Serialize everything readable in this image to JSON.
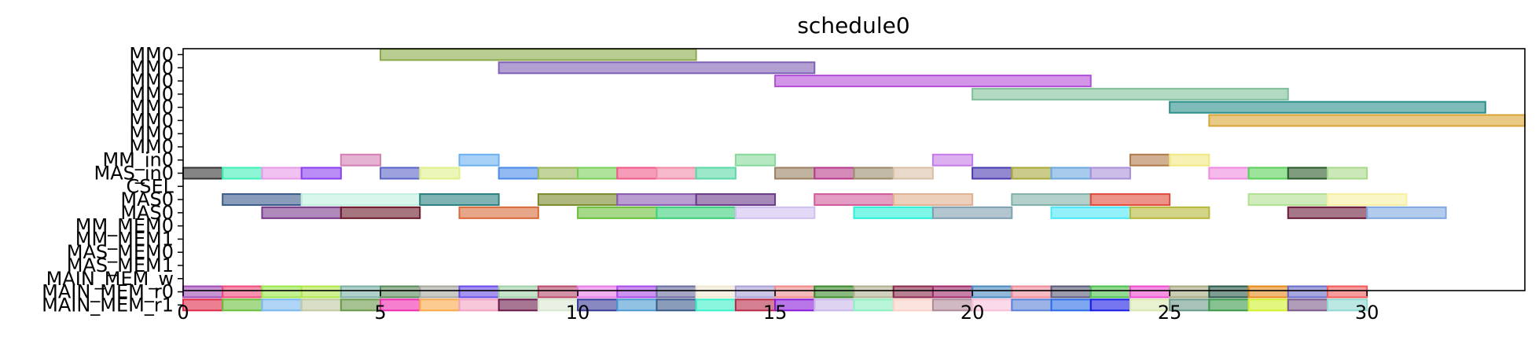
{
  "chart_data": {
    "type": "gantt",
    "title": "schedule0",
    "xlim": [
      0,
      34
    ],
    "x_ticks": [
      0,
      5,
      10,
      15,
      20,
      25,
      30
    ],
    "x_tick_labels": [
      "0",
      "5",
      "10",
      "15",
      "20",
      "25",
      "30"
    ],
    "rows": [
      "MM0",
      "MM0",
      "MM0",
      "MM0",
      "MM0",
      "MM0",
      "MM0",
      "MM0",
      "MM_in0",
      "MAS_in0",
      "CSEL",
      "MAS0",
      "MAS0",
      "MM_MEM0",
      "MM_MEM1",
      "MAS_MEM0",
      "MAS_MEM1",
      "MAIN_MEM_w",
      "MAIN_MEM_r0",
      "MAIN_MEM_r1"
    ],
    "bars": [
      {
        "row": 0,
        "start": 5,
        "end": 13,
        "color": "#8aaa4a"
      },
      {
        "row": 1,
        "start": 8,
        "end": 16,
        "color": "#7e61b5"
      },
      {
        "row": 2,
        "start": 15,
        "end": 23,
        "color": "#b44fd8"
      },
      {
        "row": 3,
        "start": 20,
        "end": 28,
        "color": "#7fbf9a"
      },
      {
        "row": 4,
        "start": 25,
        "end": 33,
        "color": "#2a8f8a"
      },
      {
        "row": 5,
        "start": 26,
        "end": 34,
        "color": "#d8a534"
      },
      {
        "row": 8,
        "start": 4,
        "end": 5,
        "color": "#d47fb3"
      },
      {
        "row": 8,
        "start": 7,
        "end": 8,
        "color": "#6cb0f0"
      },
      {
        "row": 8,
        "start": 14,
        "end": 15,
        "color": "#86d89a"
      },
      {
        "row": 8,
        "start": 19,
        "end": 20,
        "color": "#c47ae8"
      },
      {
        "row": 8,
        "start": 24,
        "end": 25,
        "color": "#b0794a"
      },
      {
        "row": 8,
        "start": 25,
        "end": 26,
        "color": "#f0e880"
      },
      {
        "row": 9,
        "start": 0,
        "end": 1,
        "color": "#333333"
      },
      {
        "row": 9,
        "start": 1,
        "end": 2,
        "color": "#3ff0b8"
      },
      {
        "row": 9,
        "start": 2,
        "end": 3,
        "color": "#e89ae8"
      },
      {
        "row": 9,
        "start": 3,
        "end": 4,
        "color": "#8a3ff0"
      },
      {
        "row": 9,
        "start": 5,
        "end": 6,
        "color": "#5a64c8"
      },
      {
        "row": 9,
        "start": 6,
        "end": 7,
        "color": "#dff08a"
      },
      {
        "row": 9,
        "start": 8,
        "end": 9,
        "color": "#4a8ae8"
      },
      {
        "row": 9,
        "start": 9,
        "end": 10,
        "color": "#9ab85a"
      },
      {
        "row": 9,
        "start": 10,
        "end": 11,
        "color": "#7ad05a"
      },
      {
        "row": 9,
        "start": 11,
        "end": 12,
        "color": "#f05a8a"
      },
      {
        "row": 9,
        "start": 12,
        "end": 13,
        "color": "#f08aa8"
      },
      {
        "row": 9,
        "start": 13,
        "end": 14,
        "color": "#5ad8a8"
      },
      {
        "row": 9,
        "start": 15,
        "end": 16,
        "color": "#9a8060"
      },
      {
        "row": 9,
        "start": 16,
        "end": 17,
        "color": "#b83a8a"
      },
      {
        "row": 9,
        "start": 17,
        "end": 18,
        "color": "#9a8a6a"
      },
      {
        "row": 9,
        "start": 18,
        "end": 19,
        "color": "#d8c0a8"
      },
      {
        "row": 9,
        "start": 20,
        "end": 21,
        "color": "#4a3ab0"
      },
      {
        "row": 9,
        "start": 21,
        "end": 22,
        "color": "#a8a83a"
      },
      {
        "row": 9,
        "start": 22,
        "end": 23,
        "color": "#6aa8e0"
      },
      {
        "row": 9,
        "start": 23,
        "end": 24,
        "color": "#a890d8"
      },
      {
        "row": 9,
        "start": 26,
        "end": 27,
        "color": "#f08ae0"
      },
      {
        "row": 9,
        "start": 27,
        "end": 28,
        "color": "#5ad05a"
      },
      {
        "row": 9,
        "start": 28,
        "end": 29,
        "color": "#2a5a2a"
      },
      {
        "row": 9,
        "start": 29,
        "end": 30,
        "color": "#a8d88a"
      },
      {
        "row": 11,
        "start": 1,
        "end": 3,
        "color": "#3a5a8a"
      },
      {
        "row": 11,
        "start": 3,
        "end": 6,
        "color": "#c0f0e0"
      },
      {
        "row": 11,
        "start": 6,
        "end": 8,
        "color": "#2a8080"
      },
      {
        "row": 11,
        "start": 9,
        "end": 11,
        "color": "#7a8a2a"
      },
      {
        "row": 11,
        "start": 11,
        "end": 13,
        "color": "#8a5ab0"
      },
      {
        "row": 11,
        "start": 13,
        "end": 15,
        "color": "#6a3a8a"
      },
      {
        "row": 11,
        "start": 16,
        "end": 18,
        "color": "#d05a9a"
      },
      {
        "row": 11,
        "start": 18,
        "end": 20,
        "color": "#e0b090"
      },
      {
        "row": 11,
        "start": 21,
        "end": 23,
        "color": "#80b0a8"
      },
      {
        "row": 11,
        "start": 23,
        "end": 25,
        "color": "#e04a3a"
      },
      {
        "row": 11,
        "start": 27,
        "end": 29,
        "color": "#b0e090"
      },
      {
        "row": 11,
        "start": 29,
        "end": 31,
        "color": "#f8f0a0"
      },
      {
        "row": 12,
        "start": 2,
        "end": 4,
        "color": "#7a3a8a"
      },
      {
        "row": 12,
        "start": 4,
        "end": 6,
        "color": "#6a1a2a"
      },
      {
        "row": 12,
        "start": 7,
        "end": 9,
        "color": "#d86a3a"
      },
      {
        "row": 12,
        "start": 10,
        "end": 12,
        "color": "#6ac03a"
      },
      {
        "row": 12,
        "start": 12,
        "end": 14,
        "color": "#3ad07a"
      },
      {
        "row": 12,
        "start": 14,
        "end": 16,
        "color": "#d0c0f0"
      },
      {
        "row": 12,
        "start": 17,
        "end": 19,
        "color": "#2af0d8"
      },
      {
        "row": 12,
        "start": 19,
        "end": 21,
        "color": "#80a0b0"
      },
      {
        "row": 12,
        "start": 22,
        "end": 24,
        "color": "#4ae8f8"
      },
      {
        "row": 12,
        "start": 24,
        "end": 26,
        "color": "#b8b83a"
      },
      {
        "row": 12,
        "start": 28,
        "end": 30,
        "color": "#6a1a3a"
      },
      {
        "row": 12,
        "start": 30,
        "end": 32,
        "color": "#80a8e0"
      },
      {
        "row": 18,
        "start": 0,
        "end": 1,
        "color": "#a04ab8"
      },
      {
        "row": 18,
        "start": 1,
        "end": 2,
        "color": "#f04a7a"
      },
      {
        "row": 18,
        "start": 2,
        "end": 3,
        "color": "#9ae84a"
      },
      {
        "row": 18,
        "start": 3,
        "end": 4,
        "color": "#b0e84a"
      },
      {
        "row": 18,
        "start": 4,
        "end": 5,
        "color": "#7ab0a8"
      },
      {
        "row": 18,
        "start": 5,
        "end": 6,
        "color": "#5a8a5a"
      },
      {
        "row": 18,
        "start": 6,
        "end": 7,
        "color": "#a8a8a0"
      },
      {
        "row": 18,
        "start": 7,
        "end": 8,
        "color": "#6a4ae8"
      },
      {
        "row": 18,
        "start": 8,
        "end": 9,
        "color": "#a0d0a8"
      },
      {
        "row": 18,
        "start": 9,
        "end": 10,
        "color": "#b84a6a"
      },
      {
        "row": 18,
        "start": 10,
        "end": 11,
        "color": "#e87ae8"
      },
      {
        "row": 18,
        "start": 11,
        "end": 12,
        "color": "#a84ae8"
      },
      {
        "row": 18,
        "start": 12,
        "end": 13,
        "color": "#6a6aa0"
      },
      {
        "row": 18,
        "start": 13,
        "end": 14,
        "color": "#f0e8d0"
      },
      {
        "row": 18,
        "start": 14,
        "end": 15,
        "color": "#a8a0d8"
      },
      {
        "row": 18,
        "start": 15,
        "end": 16,
        "color": "#f08a8a"
      },
      {
        "row": 18,
        "start": 16,
        "end": 17,
        "color": "#3a8a2a"
      },
      {
        "row": 18,
        "start": 17,
        "end": 18,
        "color": "#b0b090"
      },
      {
        "row": 18,
        "start": 18,
        "end": 19,
        "color": "#8a2a4a"
      },
      {
        "row": 18,
        "start": 19,
        "end": 20,
        "color": "#a02a6a"
      },
      {
        "row": 18,
        "start": 20,
        "end": 21,
        "color": "#4a8ac0"
      },
      {
        "row": 18,
        "start": 21,
        "end": 22,
        "color": "#f08a9a"
      },
      {
        "row": 18,
        "start": 22,
        "end": 23,
        "color": "#5a5a7a"
      },
      {
        "row": 18,
        "start": 23,
        "end": 24,
        "color": "#4ac04a"
      },
      {
        "row": 18,
        "start": 24,
        "end": 25,
        "color": "#f04ad0"
      },
      {
        "row": 18,
        "start": 25,
        "end": 26,
        "color": "#a8a880"
      },
      {
        "row": 18,
        "start": 26,
        "end": 27,
        "color": "#2a5a4a"
      },
      {
        "row": 18,
        "start": 27,
        "end": 28,
        "color": "#e88a1a"
      },
      {
        "row": 18,
        "start": 28,
        "end": 29,
        "color": "#6a6ac8"
      },
      {
        "row": 18,
        "start": 29,
        "end": 30,
        "color": "#f05a5a"
      },
      {
        "row": 19,
        "start": 0,
        "end": 1,
        "color": "#e02a4a"
      },
      {
        "row": 19,
        "start": 1,
        "end": 2,
        "color": "#6ac03a"
      },
      {
        "row": 19,
        "start": 2,
        "end": 3,
        "color": "#7ab8f0"
      },
      {
        "row": 19,
        "start": 3,
        "end": 4,
        "color": "#c0c8a0"
      },
      {
        "row": 19,
        "start": 4,
        "end": 5,
        "color": "#6a9a4a"
      },
      {
        "row": 19,
        "start": 5,
        "end": 6,
        "color": "#f02ab0"
      },
      {
        "row": 19,
        "start": 6,
        "end": 7,
        "color": "#f8a84a"
      },
      {
        "row": 19,
        "start": 7,
        "end": 8,
        "color": "#f0a0c0"
      },
      {
        "row": 19,
        "start": 8,
        "end": 9,
        "color": "#6a1a4a"
      },
      {
        "row": 19,
        "start": 9,
        "end": 10,
        "color": "#d8e8d0"
      },
      {
        "row": 19,
        "start": 10,
        "end": 11,
        "color": "#3a3a9a"
      },
      {
        "row": 19,
        "start": 11,
        "end": 12,
        "color": "#4a9ad0"
      },
      {
        "row": 19,
        "start": 12,
        "end": 13,
        "color": "#3a5a8a"
      },
      {
        "row": 19,
        "start": 13,
        "end": 14,
        "color": "#3af0c8"
      },
      {
        "row": 19,
        "start": 14,
        "end": 15,
        "color": "#b82a4a"
      },
      {
        "row": 19,
        "start": 15,
        "end": 16,
        "color": "#8a1ad8"
      },
      {
        "row": 19,
        "start": 16,
        "end": 17,
        "color": "#c8b8e8"
      },
      {
        "row": 19,
        "start": 17,
        "end": 18,
        "color": "#8af0c0"
      },
      {
        "row": 19,
        "start": 18,
        "end": 19,
        "color": "#f8d0c8"
      },
      {
        "row": 19,
        "start": 19,
        "end": 20,
        "color": "#b08a9a"
      },
      {
        "row": 19,
        "start": 20,
        "end": 21,
        "color": "#f8c0d8"
      },
      {
        "row": 19,
        "start": 21,
        "end": 22,
        "color": "#5a80d8"
      },
      {
        "row": 19,
        "start": 22,
        "end": 23,
        "color": "#2a6ae8"
      },
      {
        "row": 19,
        "start": 23,
        "end": 24,
        "color": "#1a1ae8"
      },
      {
        "row": 19,
        "start": 24,
        "end": 25,
        "color": "#d8e8b0"
      },
      {
        "row": 19,
        "start": 25,
        "end": 26,
        "color": "#6a9a8a"
      },
      {
        "row": 19,
        "start": 26,
        "end": 27,
        "color": "#3a9a4a"
      },
      {
        "row": 19,
        "start": 27,
        "end": 28,
        "color": "#d0f02a"
      },
      {
        "row": 19,
        "start": 28,
        "end": 29,
        "color": "#7a5a8a"
      },
      {
        "row": 19,
        "start": 29,
        "end": 30,
        "color": "#90d8d0"
      }
    ]
  }
}
